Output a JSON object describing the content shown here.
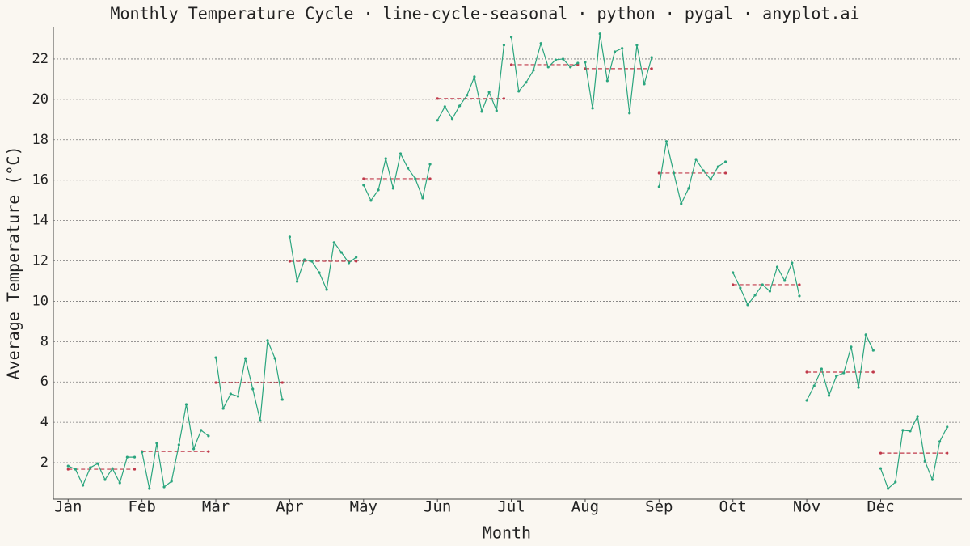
{
  "chart_data": {
    "type": "line",
    "title": "Monthly Temperature Cycle · line-cycle-seasonal · python · pygal · anyplot.ai",
    "x_label": "Month",
    "y_label": "Average Temperature (°C)",
    "xlim": [
      -0.2,
      12.1
    ],
    "xticks": [
      {
        "value": 0,
        "label": "Jan"
      },
      {
        "value": 1,
        "label": "Feb"
      },
      {
        "value": 2,
        "label": "Mar"
      },
      {
        "value": 3,
        "label": "Apr"
      },
      {
        "value": 4,
        "label": "May"
      },
      {
        "value": 5,
        "label": "Jun"
      },
      {
        "value": 6,
        "label": "Jul"
      },
      {
        "value": 7,
        "label": "Aug"
      },
      {
        "value": 8,
        "label": "Sep"
      },
      {
        "value": 9,
        "label": "Oct"
      },
      {
        "value": 10,
        "label": "Nov"
      },
      {
        "value": 11,
        "label": "Dec"
      }
    ],
    "ylim": [
      0.2,
      23.6
    ],
    "yticks": [
      2,
      4,
      6,
      8,
      10,
      12,
      14,
      16,
      18,
      20,
      22
    ],
    "grid": true,
    "color": "#2aa57e",
    "mean_color": "#c0394a",
    "series": [
      {
        "x": [
          0,
          0.1,
          0.2,
          0.3,
          0.4,
          0.5,
          0.6,
          0.7,
          0.8,
          0.9
        ],
        "values": [
          1.84,
          1.68,
          0.88,
          1.76,
          1.96,
          1.16,
          1.72,
          1.0,
          2.28,
          2.28
        ],
        "mean": 1.68
      },
      {
        "x": [
          1,
          1.1,
          1.2,
          1.3,
          1.4,
          1.5,
          1.6,
          1.7,
          1.8,
          1.9
        ],
        "values": [
          2.53,
          0.72,
          2.97,
          0.8,
          1.08,
          2.89,
          4.89,
          2.69,
          3.61,
          3.33
        ],
        "mean": 2.56
      },
      {
        "x": [
          2,
          2.1,
          2.2,
          2.3,
          2.4,
          2.5,
          2.6,
          2.7,
          2.8,
          2.9
        ],
        "values": [
          7.21,
          4.69,
          5.41,
          5.29,
          7.17,
          5.65,
          4.09,
          8.06,
          7.17,
          5.13
        ],
        "mean": 5.97
      },
      {
        "x": [
          3,
          3.1,
          3.2,
          3.3,
          3.4,
          3.5,
          3.6,
          3.7,
          3.8,
          3.9
        ],
        "values": [
          13.19,
          10.98,
          12.06,
          11.98,
          11.42,
          10.58,
          12.91,
          12.42,
          11.9,
          12.18
        ],
        "mean": 11.98
      },
      {
        "x": [
          4,
          4.1,
          4.2,
          4.3,
          4.4,
          4.5,
          4.6,
          4.7,
          4.8,
          4.9
        ],
        "values": [
          15.75,
          14.99,
          15.51,
          17.07,
          15.59,
          17.31,
          16.59,
          16.07,
          15.11,
          16.79
        ],
        "mean": 16.07
      },
      {
        "x": [
          5,
          5.1,
          5.2,
          5.3,
          5.4,
          5.5,
          5.6,
          5.7,
          5.8,
          5.9
        ],
        "values": [
          18.96,
          19.64,
          19.04,
          19.68,
          20.2,
          21.12,
          19.4,
          20.36,
          19.44,
          22.69
        ],
        "mean": 20.04
      },
      {
        "x": [
          6,
          6.1,
          6.2,
          6.3,
          6.4,
          6.5,
          6.6,
          6.7,
          6.8,
          6.9
        ],
        "values": [
          23.09,
          20.4,
          20.84,
          21.44,
          22.77,
          21.6,
          21.96,
          22.0,
          21.6,
          21.8
        ],
        "mean": 21.72
      },
      {
        "x": [
          7,
          7.1,
          7.2,
          7.3,
          7.4,
          7.5,
          7.6,
          7.7,
          7.8,
          7.9
        ],
        "values": [
          21.84,
          19.56,
          23.25,
          20.92,
          22.36,
          22.53,
          19.32,
          22.69,
          20.76,
          22.08
        ],
        "mean": 21.52
      },
      {
        "x": [
          8,
          8.1,
          8.2,
          8.3,
          8.4,
          8.5,
          8.6,
          8.7,
          8.8,
          8.9
        ],
        "values": [
          15.67,
          17.92,
          16.35,
          14.83,
          15.59,
          17.03,
          16.47,
          16.03,
          16.67,
          16.91
        ],
        "mean": 16.35
      },
      {
        "x": [
          9,
          9.1,
          9.2,
          9.3,
          9.4,
          9.5,
          9.6,
          9.7,
          9.8,
          9.9
        ],
        "values": [
          11.42,
          10.66,
          9.82,
          10.3,
          10.82,
          10.5,
          11.7,
          11.02,
          11.9,
          10.26
        ],
        "mean": 10.82
      },
      {
        "x": [
          10,
          10.1,
          10.2,
          10.3,
          10.4,
          10.5,
          10.6,
          10.7,
          10.8,
          10.9
        ],
        "values": [
          5.09,
          5.81,
          6.65,
          5.33,
          6.29,
          6.45,
          7.74,
          5.73,
          8.34,
          7.57
        ],
        "mean": 6.49
      },
      {
        "x": [
          11,
          11.1,
          11.2,
          11.3,
          11.4,
          11.5,
          11.6,
          11.7,
          11.8,
          11.9
        ],
        "values": [
          1.72,
          0.72,
          1.04,
          3.61,
          3.57,
          4.29,
          2.08,
          1.16,
          3.05,
          3.77
        ],
        "mean": 2.48
      }
    ]
  }
}
